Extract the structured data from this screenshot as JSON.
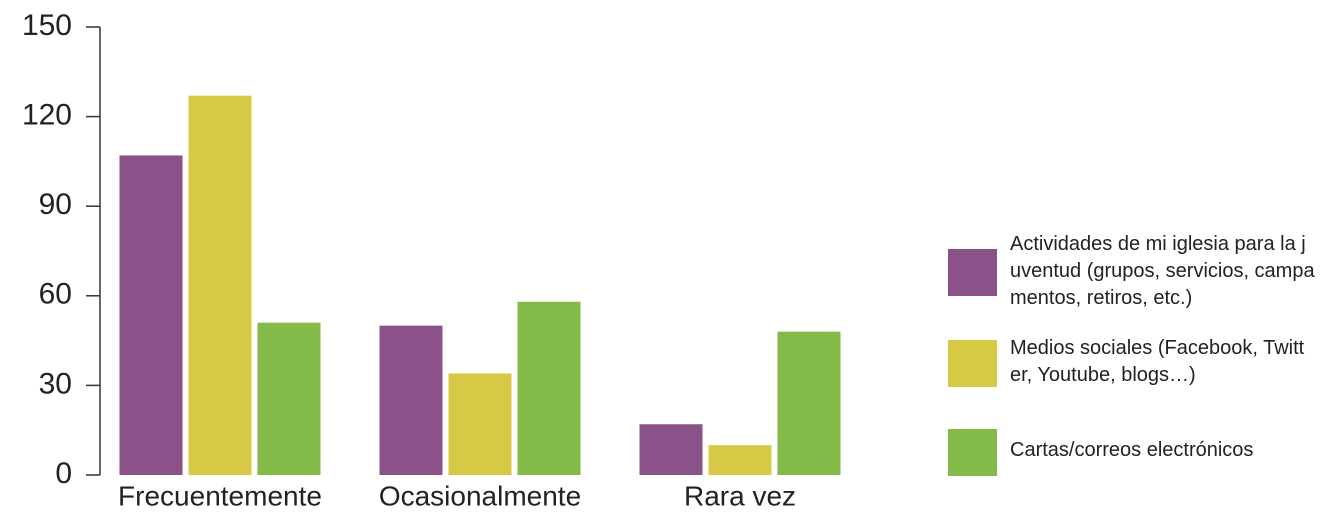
{
  "chart_data": {
    "type": "bar",
    "categories": [
      "Frecuentemente",
      "Ocasionalmente",
      "Rara vez"
    ],
    "series": [
      {
        "name": "Actividades de mi iglesia para la juventud (grupos, servicios, campamentos, retiros, etc.)",
        "color": "#8b5289",
        "values": [
          107,
          50,
          17
        ]
      },
      {
        "name": "Medios sociales (Facebook, Twitter, Youtube, blogs…)",
        "color": "#d6c945",
        "values": [
          127,
          34,
          10
        ]
      },
      {
        "name": "Cartas/correos electrónicos",
        "color": "#84bb48",
        "values": [
          51,
          58,
          48
        ]
      }
    ],
    "ylim": [
      0,
      150
    ],
    "yticks": [
      0,
      30,
      60,
      90,
      120,
      150
    ],
    "legend": "right"
  }
}
